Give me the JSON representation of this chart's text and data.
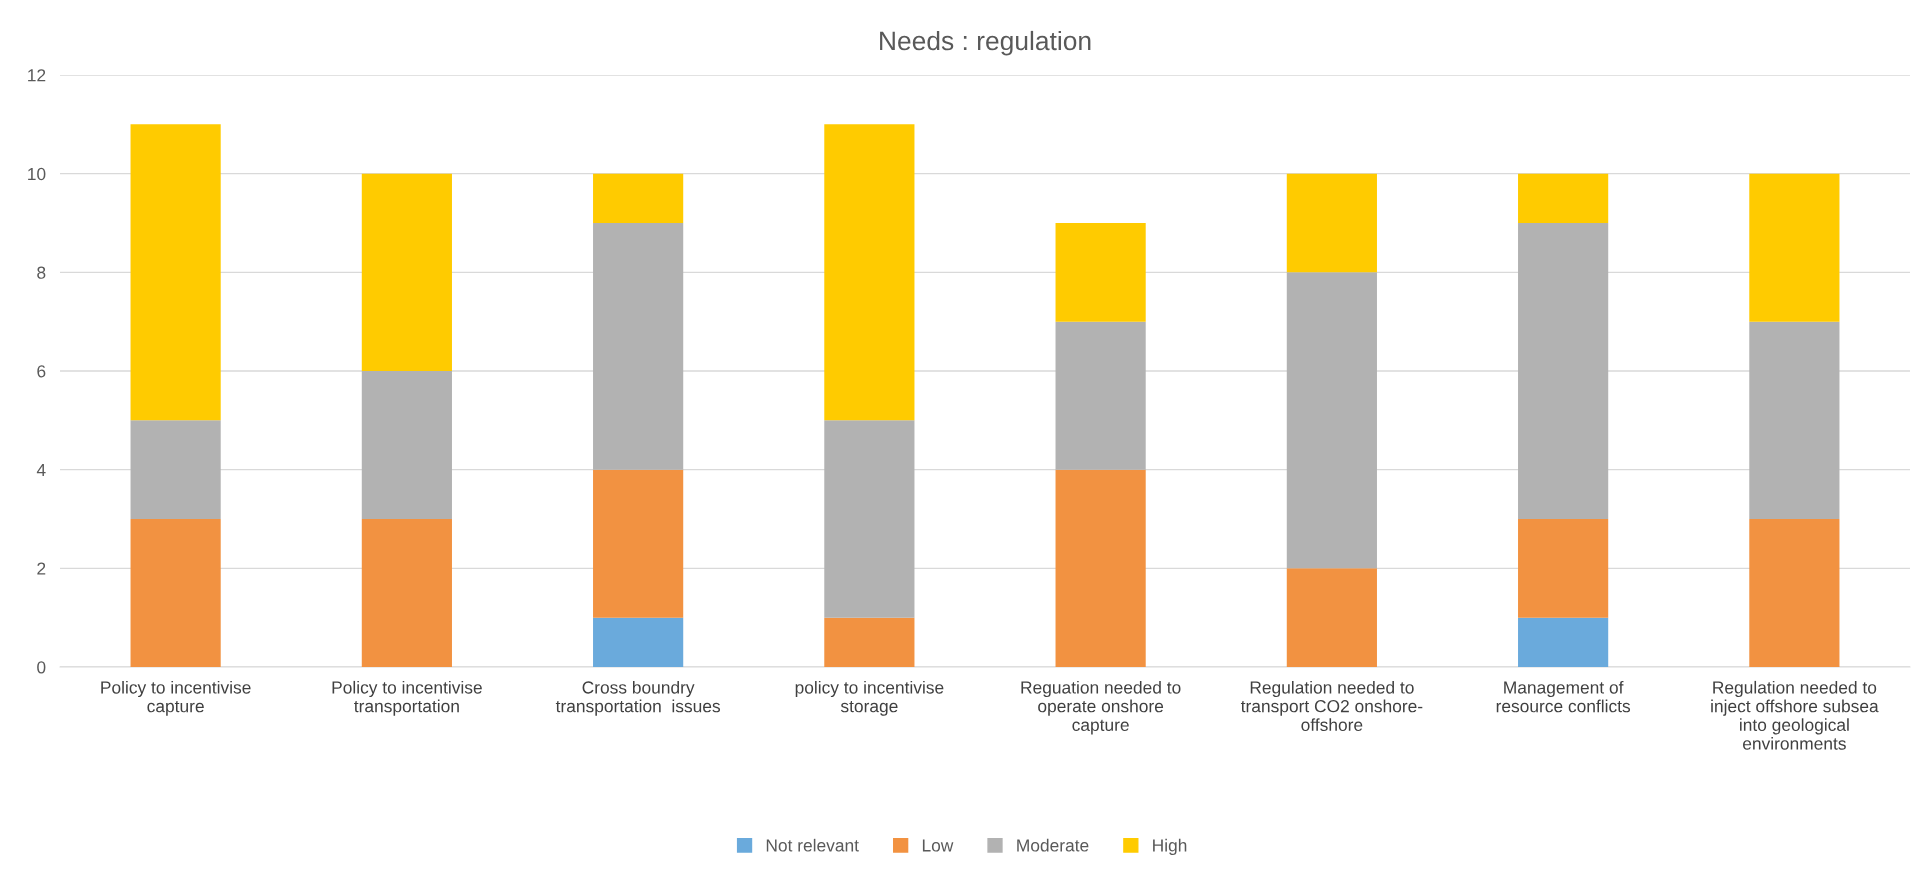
{
  "chart_data": {
    "type": "bar",
    "title": "Needs : regulation",
    "stacked": true,
    "categories": [
      "Policy to incentivise\ncapture",
      "Policy to incentivise\ntransportation",
      "Cross boundry\ntransportation  issues",
      "policy to incentivise\nstorage",
      "Reguation needed to\noperate onshore\ncapture",
      "Regulation needed to\ntransport CO2 onshore-\noffshore",
      "Management of\nresource conflicts",
      "Regulation needed to\ninject offshore subsea\ninto geological\nenvironments"
    ],
    "series": [
      {
        "name": "Not relevant",
        "color": "#6aaadc",
        "values": [
          0,
          0,
          1,
          0,
          0,
          0,
          1,
          0
        ]
      },
      {
        "name": "Low",
        "color": "#f29241",
        "values": [
          3,
          3,
          3,
          1,
          4,
          2,
          2,
          3
        ]
      },
      {
        "name": "Moderate",
        "color": "#b2b2b2",
        "values": [
          2,
          3,
          5,
          4,
          3,
          6,
          6,
          4
        ]
      },
      {
        "name": "High",
        "color": "#ffcb00",
        "values": [
          6,
          4,
          1,
          6,
          2,
          2,
          1,
          3
        ]
      }
    ],
    "ylim": [
      0,
      12
    ],
    "yticks": [
      0,
      2,
      4,
      6,
      8,
      10,
      12
    ],
    "grid": "y",
    "legend": "bottom"
  }
}
